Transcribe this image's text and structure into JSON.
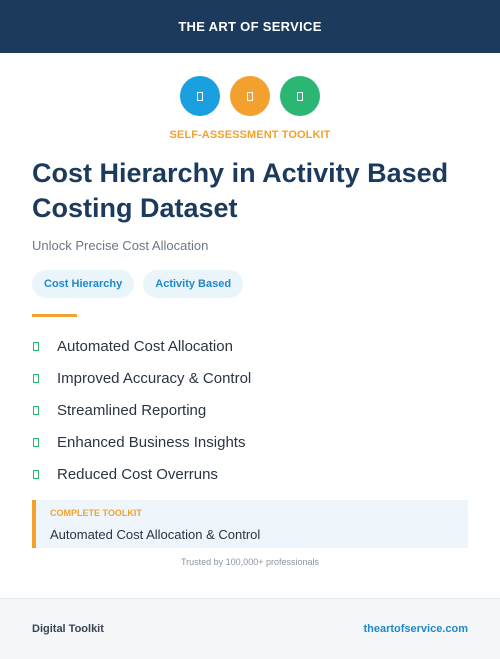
{
  "header": {
    "brand": "THE ART OF SERVICE",
    "background": "#1b3a5c"
  },
  "icons": [
    {
      "name": "blue-circle-icon",
      "color": "#1a9fe0"
    },
    {
      "name": "orange-circle-icon",
      "color": "#f2a12f"
    },
    {
      "name": "green-circle-icon",
      "color": "#2bb673"
    }
  ],
  "kicker": "SELF-ASSESSMENT TOOLKIT",
  "title": "Cost Hierarchy in Activity Based Costing Dataset",
  "subtitle": "Unlock Precise Cost Allocation",
  "tags": [
    "Cost Hierarchy",
    "Activity Based"
  ],
  "features": [
    "Automated Cost Allocation",
    "Improved Accuracy & Control",
    "Streamlined Reporting",
    "Enhanced Business Insights",
    "Reduced Cost Overruns"
  ],
  "callout": {
    "label": "COMPLETE TOOLKIT",
    "text": "Automated Cost Allocation & Control"
  },
  "trusted": "Trusted by 100,000+ professionals",
  "footer": {
    "left": "Digital Toolkit",
    "right": "theartofservice.com"
  },
  "colors": {
    "accent": "#f2a12f",
    "link": "#1f89c9",
    "check": "#2bb673"
  }
}
